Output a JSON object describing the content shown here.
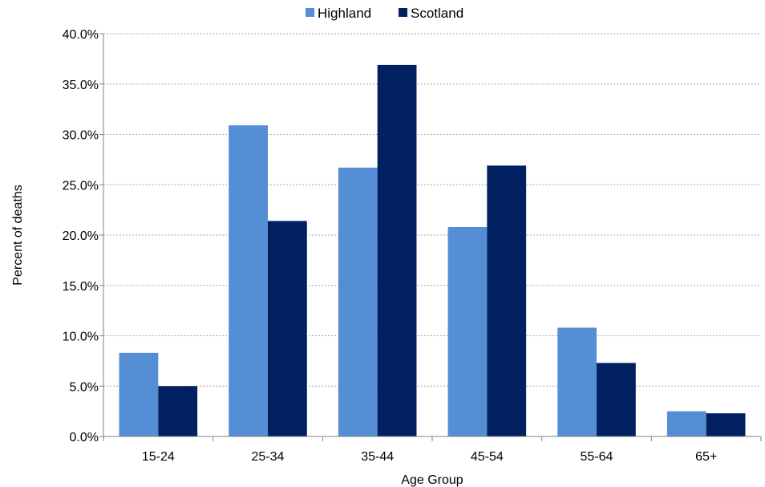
{
  "chart_data": {
    "type": "bar",
    "title": "",
    "xlabel": "Age Group",
    "ylabel": "Percent of deaths",
    "categories": [
      "15-24",
      "25-34",
      "35-44",
      "45-54",
      "55-64",
      "65+"
    ],
    "series": [
      {
        "name": "Highland",
        "color": "#558ed5",
        "values": [
          8.3,
          30.9,
          26.7,
          20.8,
          10.8,
          2.5
        ]
      },
      {
        "name": "Scotland",
        "color": "#002060",
        "values": [
          5.0,
          21.4,
          36.9,
          26.9,
          7.3,
          2.3
        ]
      }
    ],
    "ylim": [
      0,
      40
    ],
    "yticks": [
      "0.0%",
      "5.0%",
      "10.0%",
      "15.0%",
      "20.0%",
      "25.0%",
      "30.0%",
      "35.0%",
      "40.0%"
    ],
    "grid": true,
    "legend_position": "top-center"
  }
}
